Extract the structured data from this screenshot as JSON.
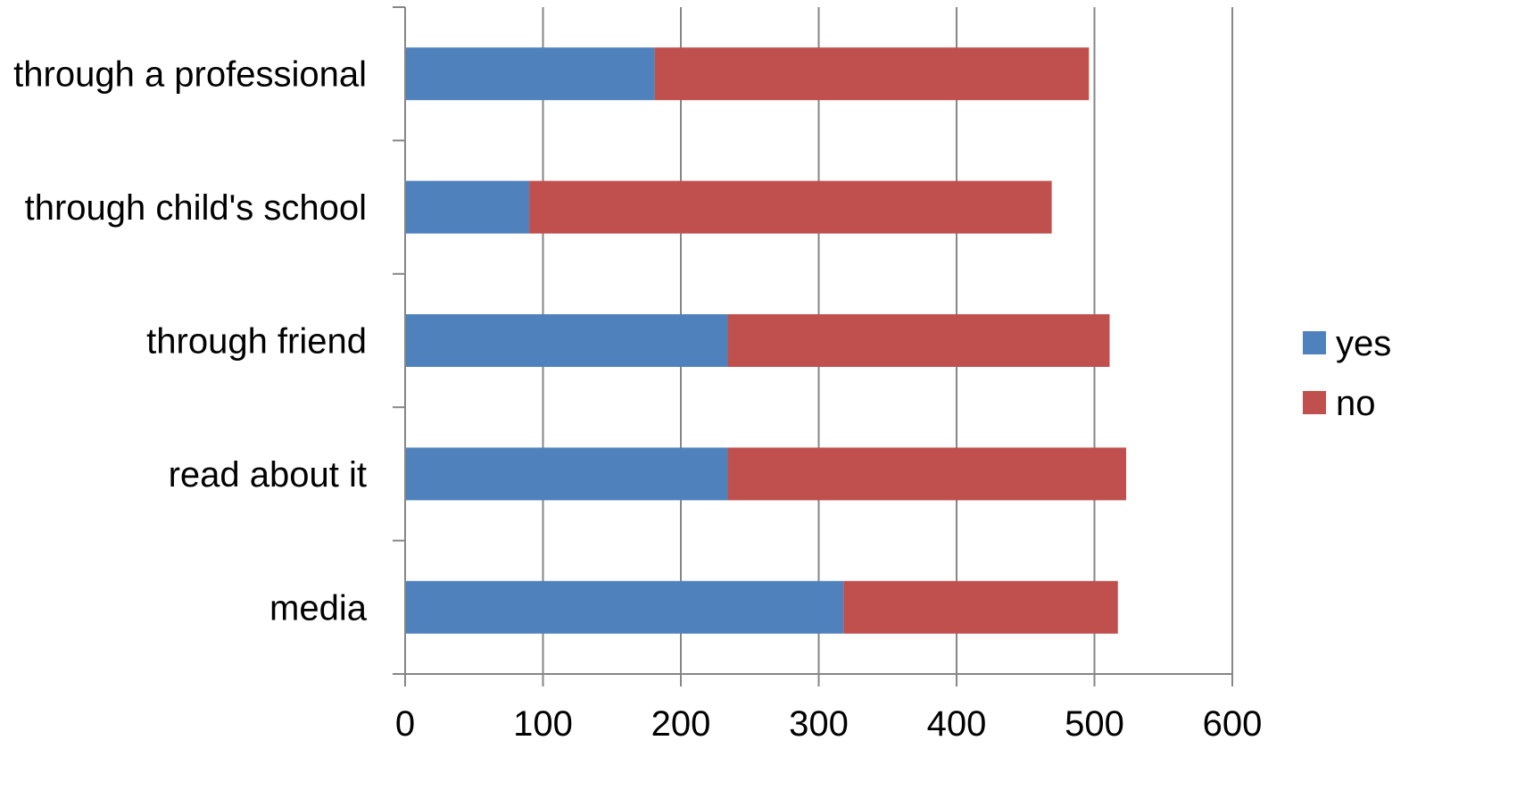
{
  "chart_data": {
    "type": "bar",
    "orientation": "horizontal",
    "stacked": true,
    "categories": [
      "through a professional",
      "through child's school",
      "through friend",
      "read about it",
      "media"
    ],
    "series": [
      {
        "name": "yes",
        "color": "#4F81BD",
        "values": [
          181,
          90,
          234,
          234,
          318
        ]
      },
      {
        "name": "no",
        "color": "#C0504D",
        "values": [
          315,
          379,
          277,
          289,
          199
        ]
      }
    ],
    "xlim": [
      0,
      600
    ],
    "xticks": [
      "0",
      "100",
      "200",
      "300",
      "400",
      "500",
      "600"
    ],
    "grid": true,
    "gridColor": "#868686",
    "legend_position": "right",
    "title": "",
    "xlabel": "",
    "ylabel": ""
  }
}
